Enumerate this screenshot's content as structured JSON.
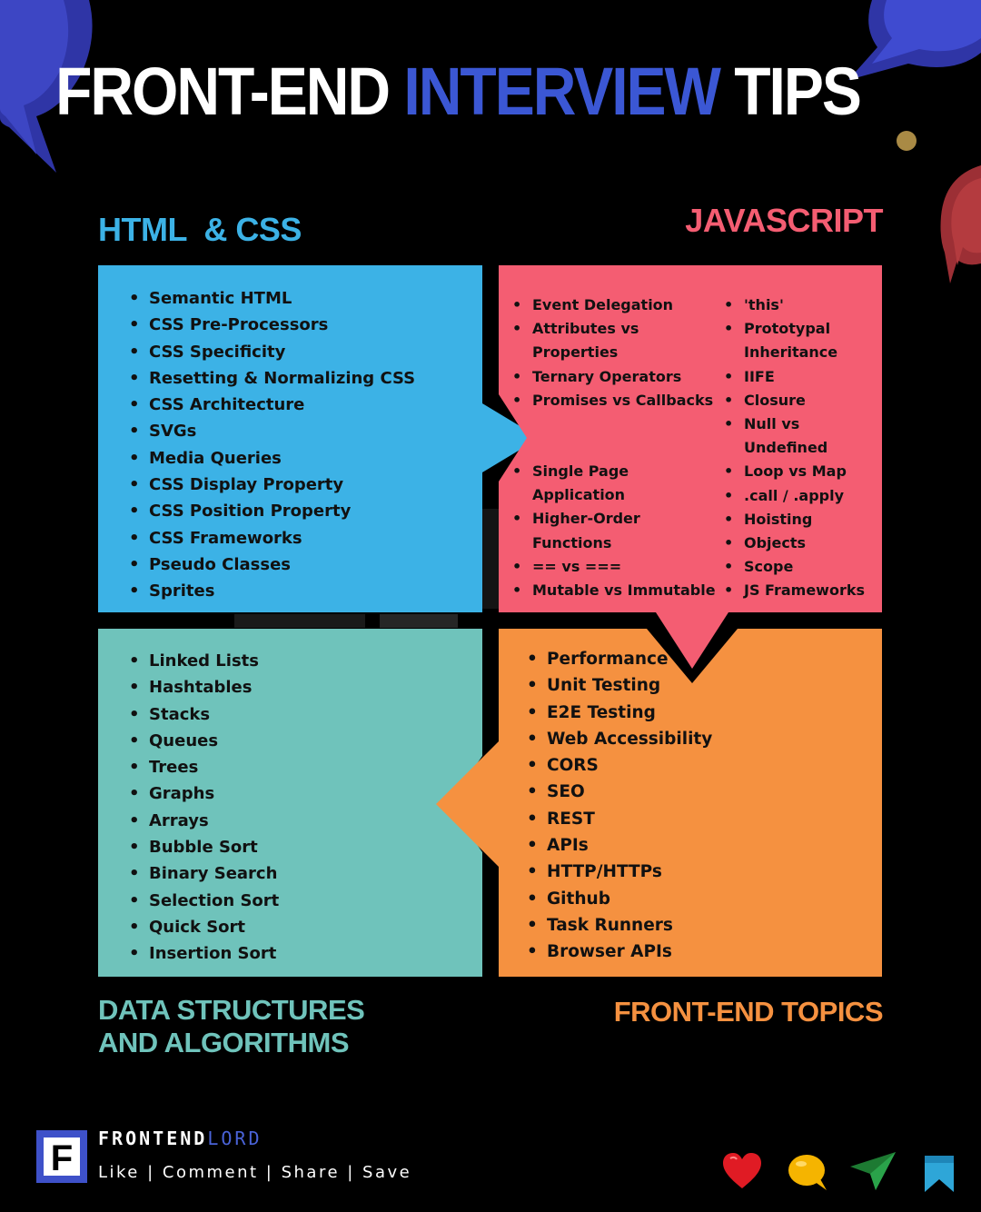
{
  "title": {
    "part1": "FRONT-END ",
    "part2": "INTERVIEW",
    "part3": " TIPS"
  },
  "sections": {
    "html_css": {
      "heading": "HTML  & CSS",
      "items": [
        "Semantic HTML",
        "CSS Pre-Processors",
        "CSS Specificity",
        "Resetting & Normalizing CSS",
        "CSS Architecture",
        "SVGs",
        "Media Queries",
        "CSS Display Property",
        "CSS Position Property",
        "CSS Frameworks",
        "Pseudo Classes",
        "Sprites"
      ]
    },
    "javascript": {
      "heading": "JAVASCRIPT",
      "col1_top": [
        "Event Delegation",
        "Attributes vs Properties",
        "Ternary Operators",
        "Promises vs Callbacks"
      ],
      "col1_bottom": [
        "Single Page Application",
        "Higher-Order Functions",
        "== vs ===",
        "Mutable vs Immutable"
      ],
      "col2": [
        "'this'",
        "Prototypal Inheritance",
        "IIFE",
        "Closure",
        "Null vs Undefined",
        "Loop vs Map",
        ".call / .apply",
        "Hoisting",
        "Objects",
        "Scope",
        "JS Frameworks"
      ]
    },
    "dsa": {
      "heading": "DATA STRUCTURES AND ALGORITHMS",
      "items": [
        "Linked Lists",
        "Hashtables",
        "Stacks",
        "Queues",
        "Trees",
        "Graphs",
        "Arrays",
        "Bubble Sort",
        "Binary Search",
        "Selection Sort",
        "Quick Sort",
        "Insertion Sort"
      ]
    },
    "frontend": {
      "heading": "FRONT-END TOPICS",
      "items": [
        "Performance",
        "Unit Testing",
        "E2E Testing",
        "Web Accessibility",
        "CORS",
        "SEO",
        "REST",
        "APIs",
        "HTTP/HTTPs",
        "Github",
        "Task Runners",
        "Browser APIs"
      ]
    }
  },
  "brand": {
    "logo_letter": "F",
    "name_part1": "FRONTEND",
    "name_part2": "LORD",
    "actions": "Like | Comment | Share | Save"
  },
  "colors": {
    "html_css": "#3cb2e6",
    "javascript": "#f45d72",
    "dsa": "#6fc3bb",
    "frontend": "#f59140",
    "accent": "#3b57d4"
  },
  "icons": [
    "heart-icon",
    "comment-icon",
    "share-icon",
    "bookmark-icon"
  ]
}
